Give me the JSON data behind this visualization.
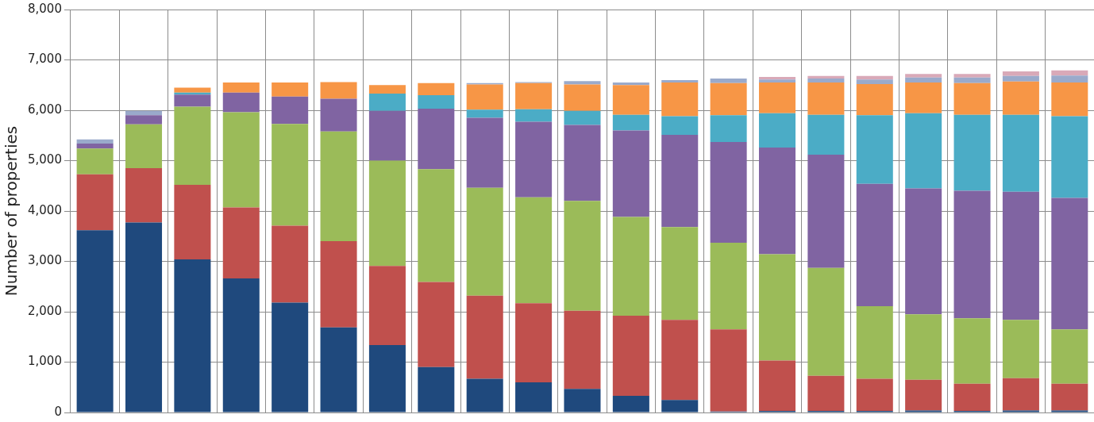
{
  "chart_data": {
    "type": "bar",
    "stacked": true,
    "ylabel": "Number of properties",
    "categories": [
      null,
      null,
      null,
      null,
      null,
      null,
      null,
      null,
      null,
      null,
      null,
      null,
      null,
      null,
      null,
      null,
      null,
      null,
      null,
      null,
      null
    ],
    "ylim": [
      0,
      8000
    ],
    "yticks": [
      {
        "value": 0,
        "label": "0"
      },
      {
        "value": 1000,
        "label": "1,000"
      },
      {
        "value": 2000,
        "label": "2,000"
      },
      {
        "value": 3000,
        "label": "3,000"
      },
      {
        "value": 4000,
        "label": "4,000"
      },
      {
        "value": 5000,
        "label": "5,000"
      },
      {
        "value": 6000,
        "label": "6,000"
      },
      {
        "value": 7000,
        "label": "7,000"
      },
      {
        "value": 8000,
        "label": "8,000"
      }
    ],
    "grid": true,
    "legend": false,
    "tick_labels": "y",
    "series": [
      {
        "color": "#1f497d",
        "values": [
          3620,
          3770,
          3040,
          2660,
          2180,
          1690,
          1340,
          900,
          670,
          600,
          470,
          330,
          250,
          20,
          30,
          30,
          30,
          40,
          30,
          40,
          40
        ]
      },
      {
        "color": "#c0504d",
        "values": [
          1110,
          1080,
          1480,
          1410,
          1530,
          1710,
          1570,
          1690,
          1650,
          1570,
          1550,
          1590,
          1590,
          1630,
          1000,
          700,
          640,
          610,
          540,
          640,
          530
        ]
      },
      {
        "color": "#9bbb59",
        "values": [
          510,
          870,
          1550,
          1890,
          2020,
          2180,
          2090,
          2240,
          2140,
          2100,
          2180,
          1960,
          1840,
          1720,
          2110,
          2140,
          1440,
          1300,
          1300,
          1160,
          1080
        ]
      },
      {
        "color": "#8064a2",
        "values": [
          100,
          180,
          240,
          390,
          540,
          650,
          990,
          1200,
          1390,
          1500,
          1510,
          1720,
          1830,
          2000,
          2120,
          2250,
          2430,
          2500,
          2530,
          2540,
          2610
        ]
      },
      {
        "color": "#4bacc6",
        "values": [
          0,
          0,
          40,
          0,
          0,
          0,
          340,
          270,
          160,
          250,
          280,
          310,
          370,
          530,
          680,
          790,
          1360,
          1490,
          1510,
          1530,
          1620
        ]
      },
      {
        "color": "#f79646",
        "values": [
          0,
          0,
          100,
          200,
          280,
          330,
          170,
          240,
          500,
          520,
          520,
          590,
          670,
          640,
          610,
          640,
          620,
          610,
          630,
          660,
          670
        ]
      },
      {
        "color": "#9aaacb",
        "values": [
          80,
          90,
          0,
          0,
          0,
          0,
          0,
          0,
          30,
          20,
          70,
          50,
          50,
          90,
          60,
          80,
          90,
          100,
          110,
          110,
          140
        ]
      },
      {
        "color": "#d9a9b8",
        "values": [
          0,
          0,
          0,
          0,
          0,
          0,
          0,
          0,
          0,
          0,
          0,
          0,
          0,
          0,
          50,
          50,
          70,
          70,
          70,
          90,
          100
        ]
      }
    ]
  }
}
